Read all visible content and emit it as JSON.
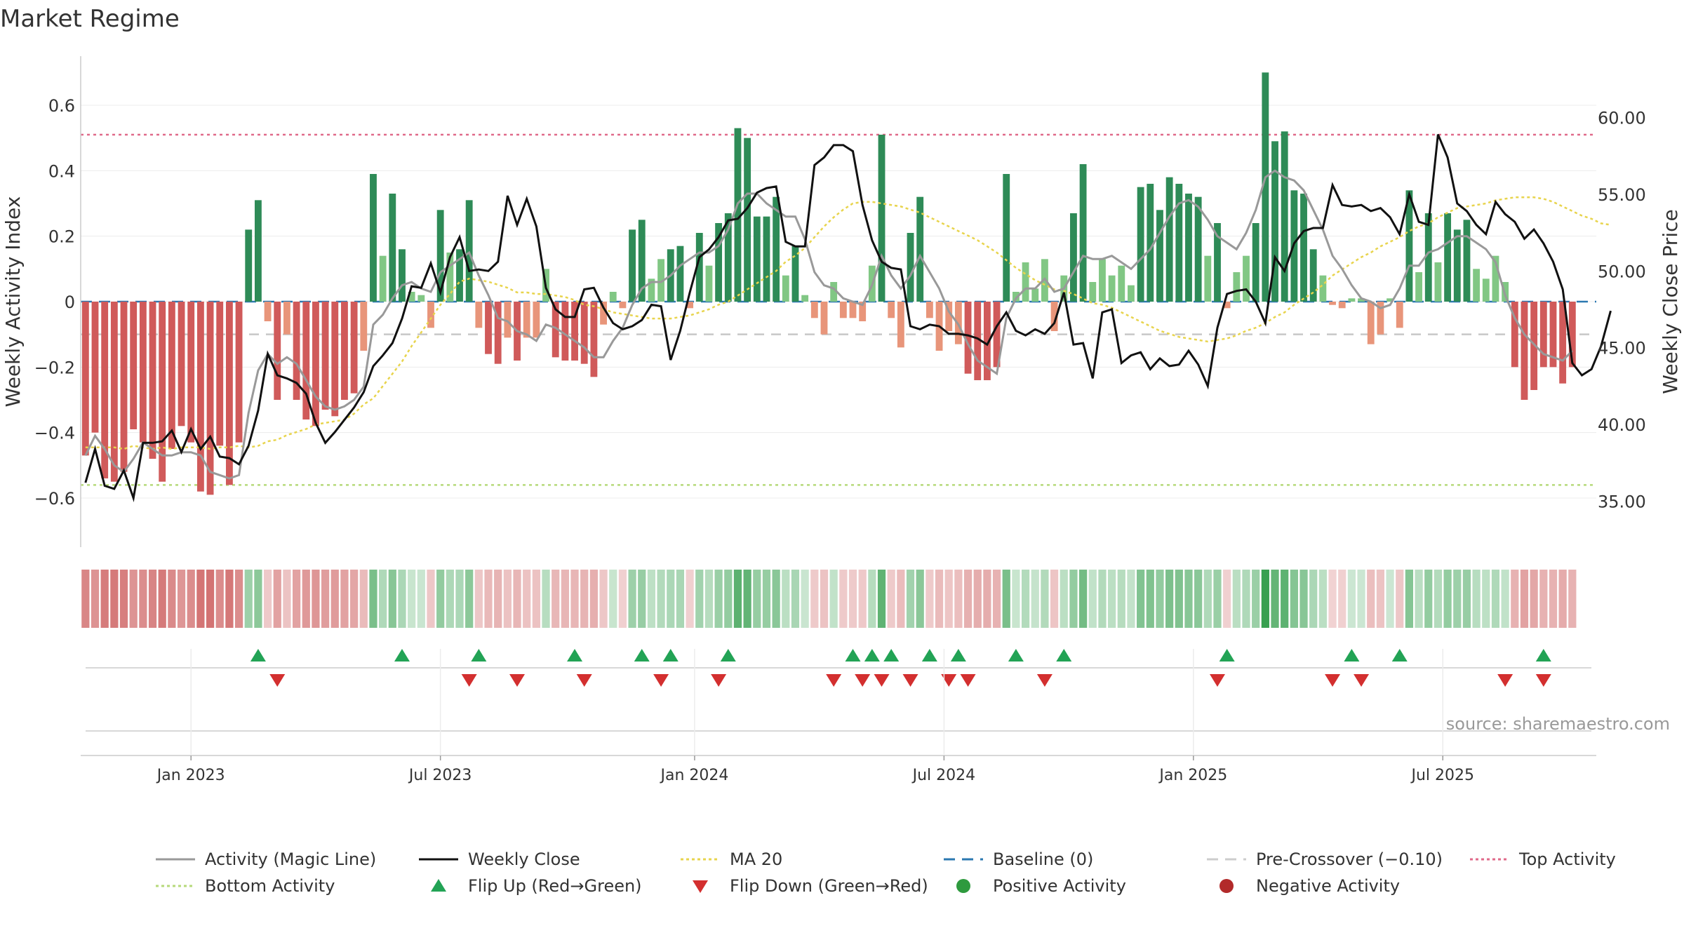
{
  "chart_data": {
    "type": "bar",
    "title": "Market Regime",
    "ylabel": "Weekly Activity Index",
    "y2label": "Weekly Close Price",
    "ylim": [
      -0.75,
      0.75
    ],
    "y2lim": [
      32.0,
      64.0
    ],
    "yticks": [
      {
        "value": 0.6,
        "label": "0.6"
      },
      {
        "value": 0.4,
        "label": "0.4"
      },
      {
        "value": 0.2,
        "label": "0.2"
      },
      {
        "value": 0,
        "label": "0"
      },
      {
        "value": -0.2,
        "label": "−0.2"
      },
      {
        "value": -0.4,
        "label": "−0.4"
      },
      {
        "value": -0.6,
        "label": "−0.6"
      }
    ],
    "y2ticks": [
      {
        "value": 60,
        "label": "60.00"
      },
      {
        "value": 55,
        "label": "55.00"
      },
      {
        "value": 50,
        "label": "50.00"
      },
      {
        "value": 45,
        "label": "45.00"
      },
      {
        "value": 40,
        "label": "40.00"
      },
      {
        "value": 35,
        "label": "35.00"
      }
    ],
    "xticks": [
      {
        "week": 11,
        "label": "Jan 2023"
      },
      {
        "week": 37,
        "label": "Jul 2023"
      },
      {
        "week": 63.5,
        "label": "Jan 2024"
      },
      {
        "week": 89.5,
        "label": "Jul 2024"
      },
      {
        "week": 115.5,
        "label": "Jan 2025"
      },
      {
        "week": 141.5,
        "label": "Jul 2025"
      }
    ],
    "n_weeks": 158,
    "activity": [
      -0.47,
      -0.4,
      -0.54,
      -0.55,
      -0.52,
      -0.39,
      -0.43,
      -0.48,
      -0.55,
      -0.45,
      -0.38,
      -0.43,
      -0.58,
      -0.59,
      -0.44,
      -0.56,
      -0.43,
      0.22,
      0.31,
      -0.06,
      -0.3,
      -0.1,
      -0.3,
      -0.36,
      -0.38,
      -0.33,
      -0.35,
      -0.3,
      -0.28,
      -0.15,
      0.39,
      0.14,
      0.33,
      0.16,
      0.03,
      0.02,
      -0.08,
      0.28,
      0.15,
      0.16,
      0.31,
      -0.08,
      -0.16,
      -0.19,
      -0.11,
      -0.18,
      -0.11,
      -0.11,
      0.1,
      -0.17,
      -0.18,
      -0.18,
      -0.19,
      -0.23,
      -0.07,
      0.03,
      -0.02,
      0.22,
      0.25,
      0.07,
      0.13,
      0.16,
      0.17,
      -0.02,
      0.21,
      0.11,
      0.24,
      0.27,
      0.53,
      0.5,
      0.26,
      0.26,
      0.32,
      0.08,
      0.17,
      0.02,
      -0.05,
      -0.1,
      0.06,
      -0.05,
      -0.05,
      -0.06,
      0.11,
      0.51,
      -0.05,
      -0.14,
      0.21,
      0.32,
      -0.05,
      -0.15,
      -0.09,
      -0.13,
      -0.22,
      -0.24,
      -0.24,
      -0.2,
      0.39,
      0.03,
      0.12,
      0.04,
      0.13,
      -0.09,
      0.08,
      0.27,
      0.42,
      0.06,
      0.13,
      0.08,
      0.11,
      0.05,
      0.35,
      0.36,
      0.28,
      0.38,
      0.36,
      0.33,
      0.32,
      0.14,
      0.24,
      -0.02,
      0.09,
      0.14,
      0.24,
      0.7,
      0.49,
      0.52,
      0.34,
      0.33,
      0.16,
      0.08,
      -0.01,
      -0.02,
      0.01,
      0.01,
      -0.13,
      -0.1,
      0.01,
      -0.08,
      0.34,
      0.09,
      0.27,
      0.12,
      0.27,
      0.22,
      0.25,
      0.1,
      0.07,
      0.14,
      0.06,
      -0.2,
      -0.3,
      -0.27,
      -0.2,
      -0.2,
      -0.25,
      -0.2
    ],
    "magic_line": [
      -0.47,
      -0.41,
      -0.45,
      -0.5,
      -0.52,
      -0.48,
      -0.43,
      -0.45,
      -0.47,
      -0.47,
      -0.46,
      -0.46,
      -0.47,
      -0.52,
      -0.53,
      -0.54,
      -0.53,
      -0.34,
      -0.21,
      -0.16,
      -0.19,
      -0.17,
      -0.19,
      -0.24,
      -0.29,
      -0.32,
      -0.33,
      -0.32,
      -0.3,
      -0.26,
      -0.07,
      -0.04,
      0.01,
      0.05,
      0.06,
      0.04,
      0.03,
      0.09,
      0.11,
      0.13,
      0.15,
      0.08,
      0.02,
      -0.05,
      -0.06,
      -0.09,
      -0.1,
      -0.12,
      -0.07,
      -0.08,
      -0.1,
      -0.12,
      -0.14,
      -0.17,
      -0.17,
      -0.12,
      -0.08,
      -0.01,
      0.04,
      0.06,
      0.06,
      0.08,
      0.11,
      0.13,
      0.15,
      0.15,
      0.17,
      0.22,
      0.3,
      0.33,
      0.33,
      0.3,
      0.28,
      0.26,
      0.26,
      0.19,
      0.09,
      0.05,
      0.04,
      0.01,
      0.0,
      -0.01,
      0.05,
      0.14,
      0.08,
      0.04,
      0.08,
      0.14,
      0.09,
      0.04,
      -0.03,
      -0.07,
      -0.13,
      -0.18,
      -0.2,
      -0.22,
      -0.05,
      0.01,
      0.04,
      0.04,
      0.07,
      0.03,
      0.04,
      0.09,
      0.14,
      0.13,
      0.13,
      0.14,
      0.12,
      0.1,
      0.13,
      0.16,
      0.21,
      0.26,
      0.3,
      0.31,
      0.29,
      0.25,
      0.2,
      0.18,
      0.16,
      0.21,
      0.28,
      0.38,
      0.4,
      0.38,
      0.37,
      0.34,
      0.28,
      0.22,
      0.14,
      0.1,
      0.05,
      0.01,
      0.0,
      -0.02,
      -0.01,
      0.04,
      0.11,
      0.11,
      0.15,
      0.16,
      0.18,
      0.2,
      0.2,
      0.18,
      0.16,
      0.12,
      0.02,
      -0.05,
      -0.1,
      -0.13,
      -0.16,
      -0.17,
      -0.18,
      -0.15
    ],
    "weekly_close": [
      36.2,
      38.4,
      36.0,
      35.8,
      37.0,
      35.2,
      38.8,
      38.8,
      38.9,
      39.6,
      38.2,
      39.7,
      38.4,
      39.2,
      37.9,
      37.8,
      37.4,
      38.6,
      40.9,
      44.6,
      43.2,
      43.0,
      42.7,
      42.0,
      40.1,
      38.8,
      39.5,
      40.3,
      41.1,
      42.1,
      43.8,
      44.5,
      45.3,
      46.9,
      49.0,
      48.9,
      50.5,
      48.6,
      50.9,
      52.2,
      50.0,
      50.1,
      50.0,
      50.6,
      54.9,
      53.0,
      54.7,
      52.9,
      48.9,
      47.5,
      47.0,
      47.0,
      48.8,
      48.9,
      47.6,
      46.6,
      46.2,
      46.4,
      46.8,
      47.8,
      47.7,
      44.2,
      46.1,
      48.6,
      50.9,
      51.4,
      52.2,
      53.3,
      53.4,
      54.1,
      55.1,
      55.4,
      55.5,
      51.9,
      51.6,
      51.6,
      56.9,
      57.4,
      58.2,
      58.2,
      57.8,
      54.3,
      52.0,
      50.6,
      50.2,
      50.1,
      46.4,
      46.2,
      46.5,
      46.4,
      45.9,
      45.9,
      45.8,
      45.6,
      45.2,
      46.4,
      47.3,
      46.1,
      45.8,
      46.2,
      45.9,
      46.6,
      48.6,
      45.2,
      45.3,
      43.0,
      47.3,
      47.5,
      44.0,
      44.5,
      44.7,
      43.6,
      44.3,
      43.8,
      43.9,
      44.8,
      43.9,
      42.5,
      46.3,
      48.5,
      48.7,
      48.8,
      48.0,
      46.6,
      50.9,
      50.0,
      51.8,
      52.6,
      52.8,
      52.8,
      55.6,
      54.3,
      54.2,
      54.3,
      53.9,
      54.1,
      53.5,
      52.4,
      55.0,
      53.2,
      53.0,
      58.9,
      57.4,
      54.4,
      53.9,
      53.0,
      52.4,
      54.5,
      53.7,
      53.2,
      52.1,
      52.7,
      51.8,
      50.6,
      48.8,
      44.0,
      43.2,
      43.6,
      45.1,
      47.4
    ],
    "ma20": [
      38.5,
      38.5,
      38.5,
      38.5,
      38.4,
      38.6,
      38.5,
      38.4,
      38.5,
      38.4,
      38.5,
      38.5,
      38.5,
      38.4,
      38.5,
      38.5,
      38.6,
      38.5,
      38.6,
      38.9,
      39.0,
      39.3,
      39.5,
      39.7,
      40.0,
      40.1,
      40.2,
      40.3,
      40.7,
      41.3,
      41.7,
      42.5,
      43.3,
      44.1,
      45.1,
      46.0,
      46.9,
      47.8,
      48.5,
      49.3,
      49.5,
      49.4,
      49.3,
      49.1,
      48.9,
      48.6,
      48.6,
      48.5,
      48.5,
      48.4,
      48.3,
      48.1,
      47.8,
      47.7,
      47.5,
      47.3,
      47.2,
      47.1,
      47.0,
      46.9,
      46.9,
      46.9,
      47.0,
      47.1,
      47.3,
      47.5,
      47.8,
      48.0,
      48.4,
      48.8,
      49.2,
      49.6,
      50.0,
      50.6,
      51.0,
      51.5,
      52.2,
      52.9,
      53.5,
      54.0,
      54.4,
      54.5,
      54.5,
      54.4,
      54.3,
      54.2,
      54.0,
      53.8,
      53.5,
      53.2,
      52.9,
      52.6,
      52.3,
      52.0,
      51.6,
      51.2,
      50.7,
      50.2,
      49.8,
      49.4,
      49.1,
      48.8,
      48.7,
      48.5,
      48.2,
      47.9,
      47.8,
      47.6,
      47.3,
      47.0,
      46.7,
      46.4,
      46.1,
      45.9,
      45.7,
      45.6,
      45.5,
      45.4,
      45.5,
      45.6,
      45.8,
      46.1,
      46.3,
      46.6,
      47.0,
      47.3,
      47.8,
      48.2,
      48.6,
      49.1,
      49.7,
      50.1,
      50.5,
      50.9,
      51.2,
      51.6,
      51.9,
      52.2,
      52.6,
      52.9,
      53.1,
      53.5,
      53.8,
      54.1,
      54.2,
      54.3,
      54.4,
      54.6,
      54.7,
      54.8,
      54.8,
      54.8,
      54.7,
      54.5,
      54.2,
      53.9,
      53.6,
      53.4,
      53.1,
      53.0
    ],
    "top_activity": 0.51,
    "bottom_activity": -0.56,
    "baseline": 0,
    "pre_crossover": -0.1,
    "flip_up_weeks": [
      18,
      33,
      41,
      51,
      58,
      61,
      67,
      80,
      82,
      84,
      88,
      91,
      97,
      102,
      119,
      132,
      137,
      152
    ],
    "flip_down_weeks": [
      20,
      40,
      45,
      52,
      60,
      66,
      78,
      81,
      83,
      86,
      90,
      92,
      100,
      118,
      130,
      133,
      148,
      152
    ],
    "legend": {
      "location": "bottom",
      "items": [
        {
          "label": "Activity (Magic Line)",
          "kind": "line",
          "color": "#999999",
          "dash": "solid"
        },
        {
          "label": "Weekly Close",
          "kind": "line",
          "color": "#111111",
          "dash": "solid"
        },
        {
          "label": "MA 20",
          "kind": "line",
          "color": "#e8d44d",
          "dash": "dotted"
        },
        {
          "label": "Baseline (0)",
          "kind": "line",
          "color": "#2b78b0",
          "dash": "dashed"
        },
        {
          "label": "Pre-Crossover (−0.10)",
          "kind": "line",
          "color": "#cccccc",
          "dash": "dashed"
        },
        {
          "label": "Top Activity",
          "kind": "line",
          "color": "#e06a8a",
          "dash": "dotted"
        },
        {
          "label": "Bottom Activity",
          "kind": "line",
          "color": "#b6d97a",
          "dash": "dotted"
        },
        {
          "label": "Flip Up (Red→Green)",
          "kind": "triangle-up",
          "color": "#22a355"
        },
        {
          "label": "Flip Down (Green→Red)",
          "kind": "triangle-down",
          "color": "#d32f2f"
        },
        {
          "label": "Positive Activity",
          "kind": "circle",
          "color": "#2e9a3e"
        },
        {
          "label": "Negative Activity",
          "kind": "circle",
          "color": "#b22a2a"
        }
      ]
    },
    "source_note": "source: sharemaestro.com",
    "grid": true
  },
  "colors": {
    "pos_dark": "#2e8b57",
    "pos_light": "#81c784",
    "neg_dark": "#d05a5a",
    "neg_light": "#e8957a",
    "close": "#111111",
    "magic": "#999999",
    "ma20": "#e8d44d",
    "top": "#e06a8a",
    "bottom": "#b6d97a",
    "baseline": "#2b78b0",
    "pre": "#c8c8c8",
    "flip_up": "#22a355",
    "flip_down": "#d32f2f"
  }
}
